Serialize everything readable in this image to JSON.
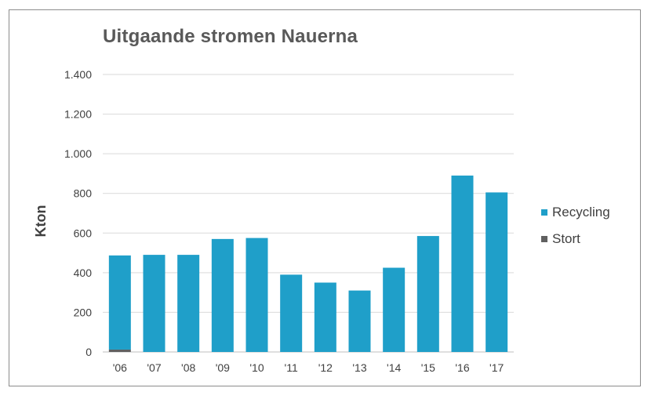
{
  "chart_data": {
    "type": "bar",
    "title": "Uitgaande stromen Nauerna",
    "ylabel": "Kton",
    "xlabel": "",
    "ylim": [
      0,
      1400
    ],
    "yticks": [
      0,
      200,
      400,
      600,
      800,
      1000,
      1200,
      1400
    ],
    "ytick_labels": [
      "0",
      "200",
      "400",
      "600",
      "800",
      "1.000",
      "1.200",
      "1.400"
    ],
    "categories": [
      "'06",
      "'07",
      "'08",
      "'09",
      "'10",
      "'11",
      "'12",
      "'13",
      "'14",
      "'15",
      "'16",
      "'17"
    ],
    "stacked": true,
    "grid": true,
    "legend_position": "right",
    "series": [
      {
        "name": "Recycling",
        "color": "#1f9fc9",
        "values": [
          475,
          490,
          490,
          570,
          575,
          390,
          350,
          310,
          425,
          585,
          890,
          805
        ]
      },
      {
        "name": "Stort",
        "color": "#606060",
        "values": [
          12,
          0,
          0,
          0,
          0,
          0,
          0,
          0,
          0,
          0,
          0,
          0
        ]
      }
    ]
  }
}
